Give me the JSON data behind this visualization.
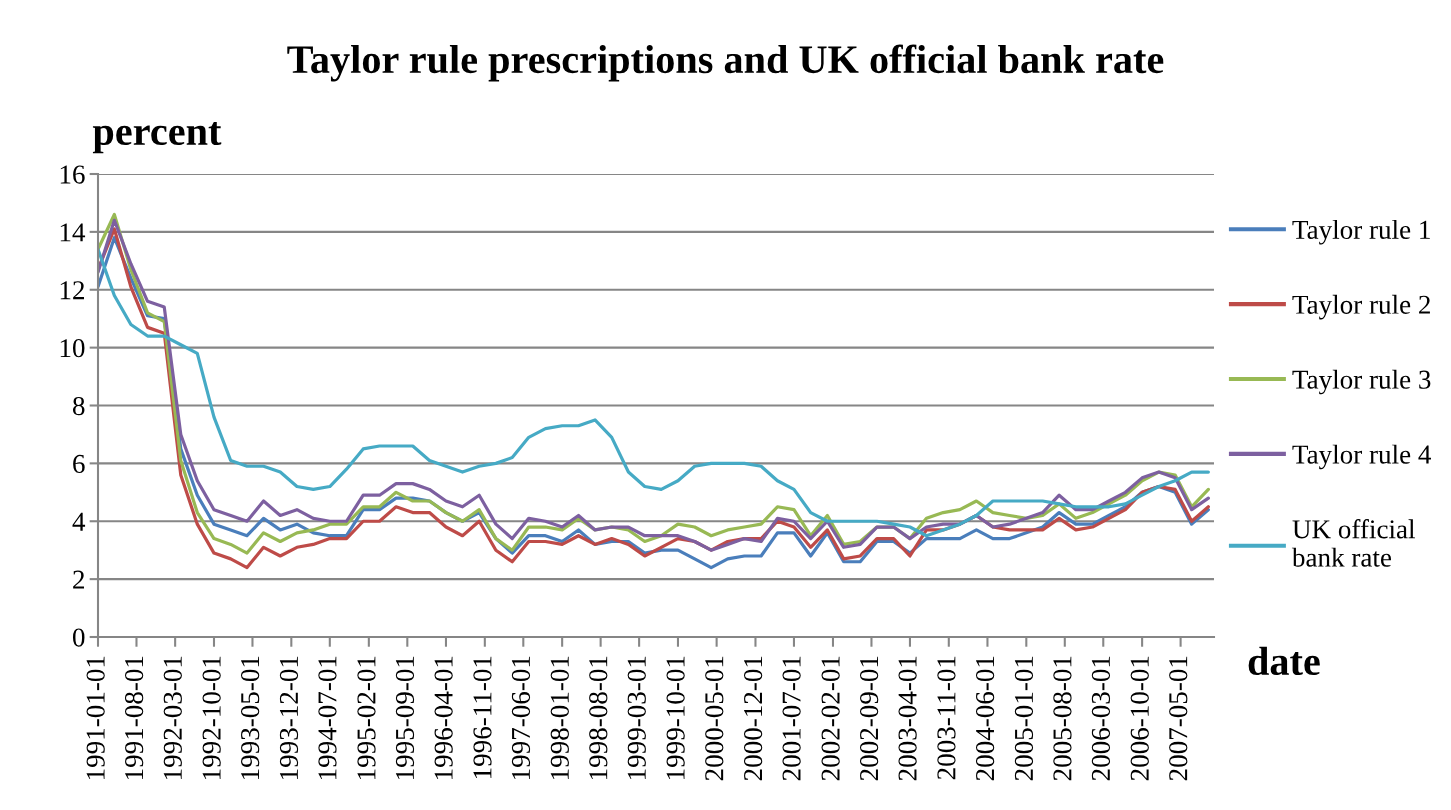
{
  "chart_data": {
    "type": "line",
    "title": "Taylor rule prescriptions and UK official bank rate",
    "xlabel": "date",
    "ylabel": "percent",
    "x": [
      "1991-01",
      "1991-04",
      "1991-07",
      "1991-10",
      "1992-01",
      "1992-04",
      "1992-07",
      "1992-10",
      "1993-01",
      "1993-04",
      "1993-07",
      "1993-10",
      "1994-01",
      "1994-04",
      "1994-07",
      "1994-10",
      "1995-01",
      "1995-04",
      "1995-07",
      "1995-10",
      "1996-01",
      "1996-04",
      "1996-07",
      "1996-10",
      "1997-01",
      "1997-04",
      "1997-07",
      "1997-10",
      "1998-01",
      "1998-04",
      "1998-07",
      "1998-10",
      "1999-01",
      "1999-04",
      "1999-07",
      "1999-10",
      "2000-01",
      "2000-04",
      "2000-07",
      "2000-10",
      "2001-01",
      "2001-04",
      "2001-07",
      "2001-10",
      "2002-01",
      "2002-04",
      "2002-07",
      "2002-10",
      "2003-01",
      "2003-04",
      "2003-07",
      "2003-10",
      "2004-01",
      "2004-04",
      "2004-07",
      "2004-10",
      "2005-01",
      "2005-04",
      "2005-07",
      "2005-10",
      "2006-01",
      "2006-04",
      "2006-07",
      "2006-10",
      "2007-01",
      "2007-04",
      "2007-07",
      "2007-10"
    ],
    "xlim": [
      "1991-01-01",
      "2007-11-01"
    ],
    "xticks": [
      {
        "value": "1991-01-01",
        "label": "1991-01-01"
      },
      {
        "value": "1991-08-01",
        "label": "1991-08-01"
      },
      {
        "value": "1992-03-01",
        "label": "1992-03-01"
      },
      {
        "value": "1992-10-01",
        "label": "1992-10-01"
      },
      {
        "value": "1993-05-01",
        "label": "1993-05-01"
      },
      {
        "value": "1993-12-01",
        "label": "1993-12-01"
      },
      {
        "value": "1994-07-01",
        "label": "1994-07-01"
      },
      {
        "value": "1995-02-01",
        "label": "1995-02-01"
      },
      {
        "value": "1995-09-01",
        "label": "1995-09-01"
      },
      {
        "value": "1996-04-01",
        "label": "1996-04-01"
      },
      {
        "value": "1996-11-01",
        "label": "1996-11-01"
      },
      {
        "value": "1997-06-01",
        "label": "1997-06-01"
      },
      {
        "value": "1998-01-01",
        "label": "1998-01-01"
      },
      {
        "value": "1998-08-01",
        "label": "1998-08-01"
      },
      {
        "value": "1999-03-01",
        "label": "1999-03-01"
      },
      {
        "value": "1999-10-01",
        "label": "1999-10-01"
      },
      {
        "value": "2000-05-01",
        "label": "2000-05-01"
      },
      {
        "value": "2000-12-01",
        "label": "2000-12-01"
      },
      {
        "value": "2001-07-01",
        "label": "2001-07-01"
      },
      {
        "value": "2002-02-01",
        "label": "2002-02-01"
      },
      {
        "value": "2002-09-01",
        "label": "2002-09-01"
      },
      {
        "value": "2003-04-01",
        "label": "2003-04-01"
      },
      {
        "value": "2003-11-01",
        "label": "2003-11-01"
      },
      {
        "value": "2004-06-01",
        "label": "2004-06-01"
      },
      {
        "value": "2005-01-01",
        "label": "2005-01-01"
      },
      {
        "value": "2005-08-01",
        "label": "2005-08-01"
      },
      {
        "value": "2006-03-01",
        "label": "2006-03-01"
      },
      {
        "value": "2006-10-01",
        "label": "2006-10-01"
      },
      {
        "value": "2007-05-01",
        "label": "2007-05-01"
      }
    ],
    "ylim": [
      0,
      16
    ],
    "yticks": [
      0,
      2,
      4,
      6,
      8,
      10,
      12,
      14,
      16
    ],
    "grid": "y",
    "legend": "right",
    "series": [
      {
        "name": "Taylor rule 1",
        "color": "#4a7ebb",
        "values": [
          12.1,
          13.8,
          12.4,
          11.1,
          11.0,
          6.5,
          4.9,
          3.9,
          3.7,
          3.5,
          4.1,
          3.7,
          3.9,
          3.6,
          3.5,
          3.5,
          4.4,
          4.4,
          4.8,
          4.8,
          4.7,
          4.3,
          4.0,
          4.3,
          3.4,
          2.9,
          3.5,
          3.5,
          3.3,
          3.7,
          3.2,
          3.3,
          3.3,
          2.9,
          3.0,
          3.0,
          2.7,
          2.4,
          2.7,
          2.8,
          2.8,
          3.6,
          3.6,
          2.8,
          3.6,
          2.6,
          2.6,
          3.3,
          3.3,
          2.9,
          3.4,
          3.4,
          3.4,
          3.7,
          3.4,
          3.4,
          3.6,
          3.8,
          4.3,
          3.9,
          3.9,
          4.2,
          4.5,
          5.0,
          5.2,
          5.0,
          3.9,
          4.4
        ]
      },
      {
        "name": "Taylor rule 2",
        "color": "#be4b48",
        "values": [
          12.7,
          14.1,
          12.1,
          10.7,
          10.5,
          5.6,
          3.9,
          2.9,
          2.7,
          2.4,
          3.1,
          2.8,
          3.1,
          3.2,
          3.4,
          3.4,
          4.0,
          4.0,
          4.5,
          4.3,
          4.3,
          3.8,
          3.5,
          4.0,
          3.0,
          2.6,
          3.3,
          3.3,
          3.2,
          3.5,
          3.2,
          3.4,
          3.2,
          2.8,
          3.1,
          3.4,
          3.3,
          3.0,
          3.3,
          3.4,
          3.4,
          4.0,
          3.8,
          3.1,
          3.7,
          2.7,
          2.8,
          3.4,
          3.4,
          2.8,
          3.7,
          3.7,
          3.9,
          4.2,
          3.8,
          3.7,
          3.7,
          3.7,
          4.1,
          3.7,
          3.8,
          4.1,
          4.4,
          5.0,
          5.2,
          5.1,
          4.0,
          4.5
        ]
      },
      {
        "name": "Taylor rule 3",
        "color": "#98b954",
        "values": [
          13.4,
          14.6,
          12.7,
          11.2,
          10.9,
          6.1,
          4.3,
          3.4,
          3.2,
          2.9,
          3.6,
          3.3,
          3.6,
          3.7,
          3.9,
          3.9,
          4.5,
          4.5,
          5.0,
          4.7,
          4.7,
          4.3,
          4.0,
          4.4,
          3.4,
          3.0,
          3.8,
          3.8,
          3.7,
          4.1,
          3.7,
          3.8,
          3.7,
          3.3,
          3.5,
          3.9,
          3.8,
          3.5,
          3.7,
          3.8,
          3.9,
          4.5,
          4.4,
          3.5,
          4.2,
          3.2,
          3.3,
          3.8,
          3.8,
          3.4,
          4.1,
          4.3,
          4.4,
          4.7,
          4.3,
          4.2,
          4.1,
          4.2,
          4.6,
          4.1,
          4.3,
          4.6,
          4.9,
          5.4,
          5.7,
          5.6,
          4.5,
          5.1
        ]
      },
      {
        "name": "Taylor rule 4",
        "color": "#7d60a0",
        "values": [
          12.6,
          14.4,
          12.9,
          11.6,
          11.4,
          7.0,
          5.4,
          4.4,
          4.2,
          4.0,
          4.7,
          4.2,
          4.4,
          4.1,
          4.0,
          4.0,
          4.9,
          4.9,
          5.3,
          5.3,
          5.1,
          4.7,
          4.5,
          4.9,
          3.9,
          3.4,
          4.1,
          4.0,
          3.8,
          4.2,
          3.7,
          3.8,
          3.8,
          3.5,
          3.5,
          3.5,
          3.3,
          3.0,
          3.2,
          3.4,
          3.3,
          4.1,
          4.0,
          3.4,
          4.0,
          3.1,
          3.2,
          3.8,
          3.8,
          3.4,
          3.8,
          3.9,
          3.9,
          4.2,
          3.8,
          3.9,
          4.1,
          4.3,
          4.9,
          4.4,
          4.4,
          4.7,
          5.0,
          5.5,
          5.7,
          5.5,
          4.4,
          4.8
        ]
      },
      {
        "name": "UK official bank rate",
        "color": "#46aac5",
        "values": [
          13.4,
          11.8,
          10.8,
          10.4,
          10.4,
          10.1,
          9.8,
          7.6,
          6.1,
          5.9,
          5.9,
          5.7,
          5.2,
          5.1,
          5.2,
          5.8,
          6.5,
          6.6,
          6.6,
          6.6,
          6.1,
          5.9,
          5.7,
          5.9,
          6.0,
          6.2,
          6.9,
          7.2,
          7.3,
          7.3,
          7.5,
          6.9,
          5.7,
          5.2,
          5.1,
          5.4,
          5.9,
          6.0,
          6.0,
          6.0,
          5.9,
          5.4,
          5.1,
          4.3,
          4.0,
          4.0,
          4.0,
          4.0,
          3.9,
          3.8,
          3.5,
          3.7,
          3.9,
          4.2,
          4.7,
          4.7,
          4.7,
          4.7,
          4.6,
          4.5,
          4.5,
          4.5,
          4.6,
          4.9,
          5.2,
          5.4,
          5.7,
          5.7
        ]
      }
    ]
  }
}
